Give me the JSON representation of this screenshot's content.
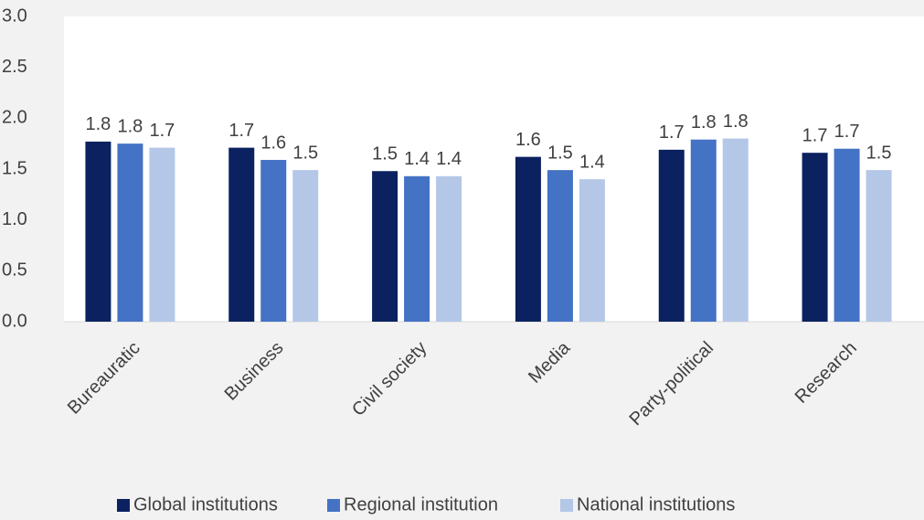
{
  "chart_data": {
    "type": "bar",
    "categories": [
      "Bureauratic",
      "Business",
      "Civil society",
      "Media",
      "Party-political",
      "Research"
    ],
    "series": [
      {
        "name": "Global institutions",
        "color": "#0b2160",
        "values": [
          1.77,
          1.71,
          1.48,
          1.62,
          1.69,
          1.66
        ],
        "value_labels": [
          "1.8",
          "1.7",
          "1.5",
          "1.6",
          "1.7",
          "1.7"
        ]
      },
      {
        "name": "Regional institution",
        "color": "#4472c4",
        "values": [
          1.75,
          1.59,
          1.43,
          1.49,
          1.79,
          1.7
        ],
        "value_labels": [
          "1.8",
          "1.6",
          "1.4",
          "1.5",
          "1.8",
          "1.7"
        ]
      },
      {
        "name": "National institutions",
        "color": "#b4c7e7",
        "values": [
          1.71,
          1.49,
          1.43,
          1.4,
          1.8,
          1.49
        ],
        "value_labels": [
          "1.7",
          "1.5",
          "1.4",
          "1.4",
          "1.8",
          "1.5"
        ]
      }
    ],
    "ylim": [
      0,
      3
    ],
    "yticks": [
      {
        "value": 0,
        "label": "0.0"
      },
      0.5,
      {
        "value": 1,
        "label": "1.0"
      },
      1.5,
      {
        "value": 2,
        "label": "2.0"
      },
      2.5,
      {
        "value": 3,
        "label": "3.0"
      }
    ],
    "grid": false,
    "legend": "bottom"
  }
}
